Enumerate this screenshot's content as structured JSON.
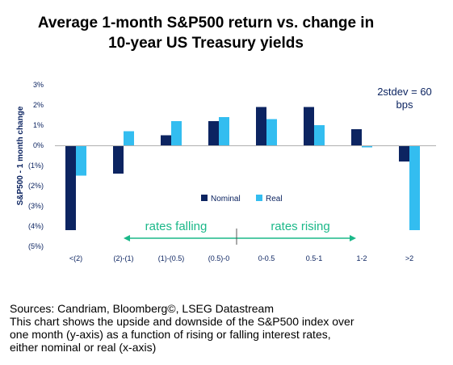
{
  "title_lines": [
    "Average 1-month S&P500 return vs. change in",
    "10-year US Treasury yields"
  ],
  "footer": {
    "source": "Sources: Candriam, Bloomberg©, LSEG Datastream",
    "note_lines": [
      "This chart shows the upside and downside of the S&P500 index over",
      "one month (y-axis) as a function of rising or falling interest rates,",
      "either nominal or real (x-axis)"
    ]
  },
  "chart_data": {
    "type": "bar",
    "ylabel": "S&P500 - 1 month change",
    "ylim": [
      -5,
      3
    ],
    "yticks": [
      "3%",
      "2%",
      "1%",
      "0%",
      "(1%)",
      "(2%)",
      "(3%)",
      "(4%)",
      "(5%)"
    ],
    "categories": [
      "<(2)",
      "(2)-(1)",
      "(1)-(0.5)",
      "(0.5)-0",
      "0-0.5",
      "0.5-1",
      "1-2",
      ">2"
    ],
    "series": [
      {
        "name": "Nominal",
        "color": "#0c2461",
        "values": [
          -4.2,
          -1.4,
          0.5,
          1.2,
          1.9,
          1.9,
          0.8,
          -0.8
        ]
      },
      {
        "name": "Real",
        "color": "#33bdf0",
        "values": [
          -1.5,
          0.7,
          1.2,
          1.4,
          1.3,
          1.0,
          -0.1,
          -4.2
        ]
      }
    ],
    "legend_position": "inside-center",
    "grid": false,
    "annotations": {
      "stdev_lines": [
        "2stdev = 60",
        "bps"
      ],
      "rates_falling": "rates falling",
      "rates_rising": "rates rising",
      "arrow_color": "#1bb889"
    }
  }
}
